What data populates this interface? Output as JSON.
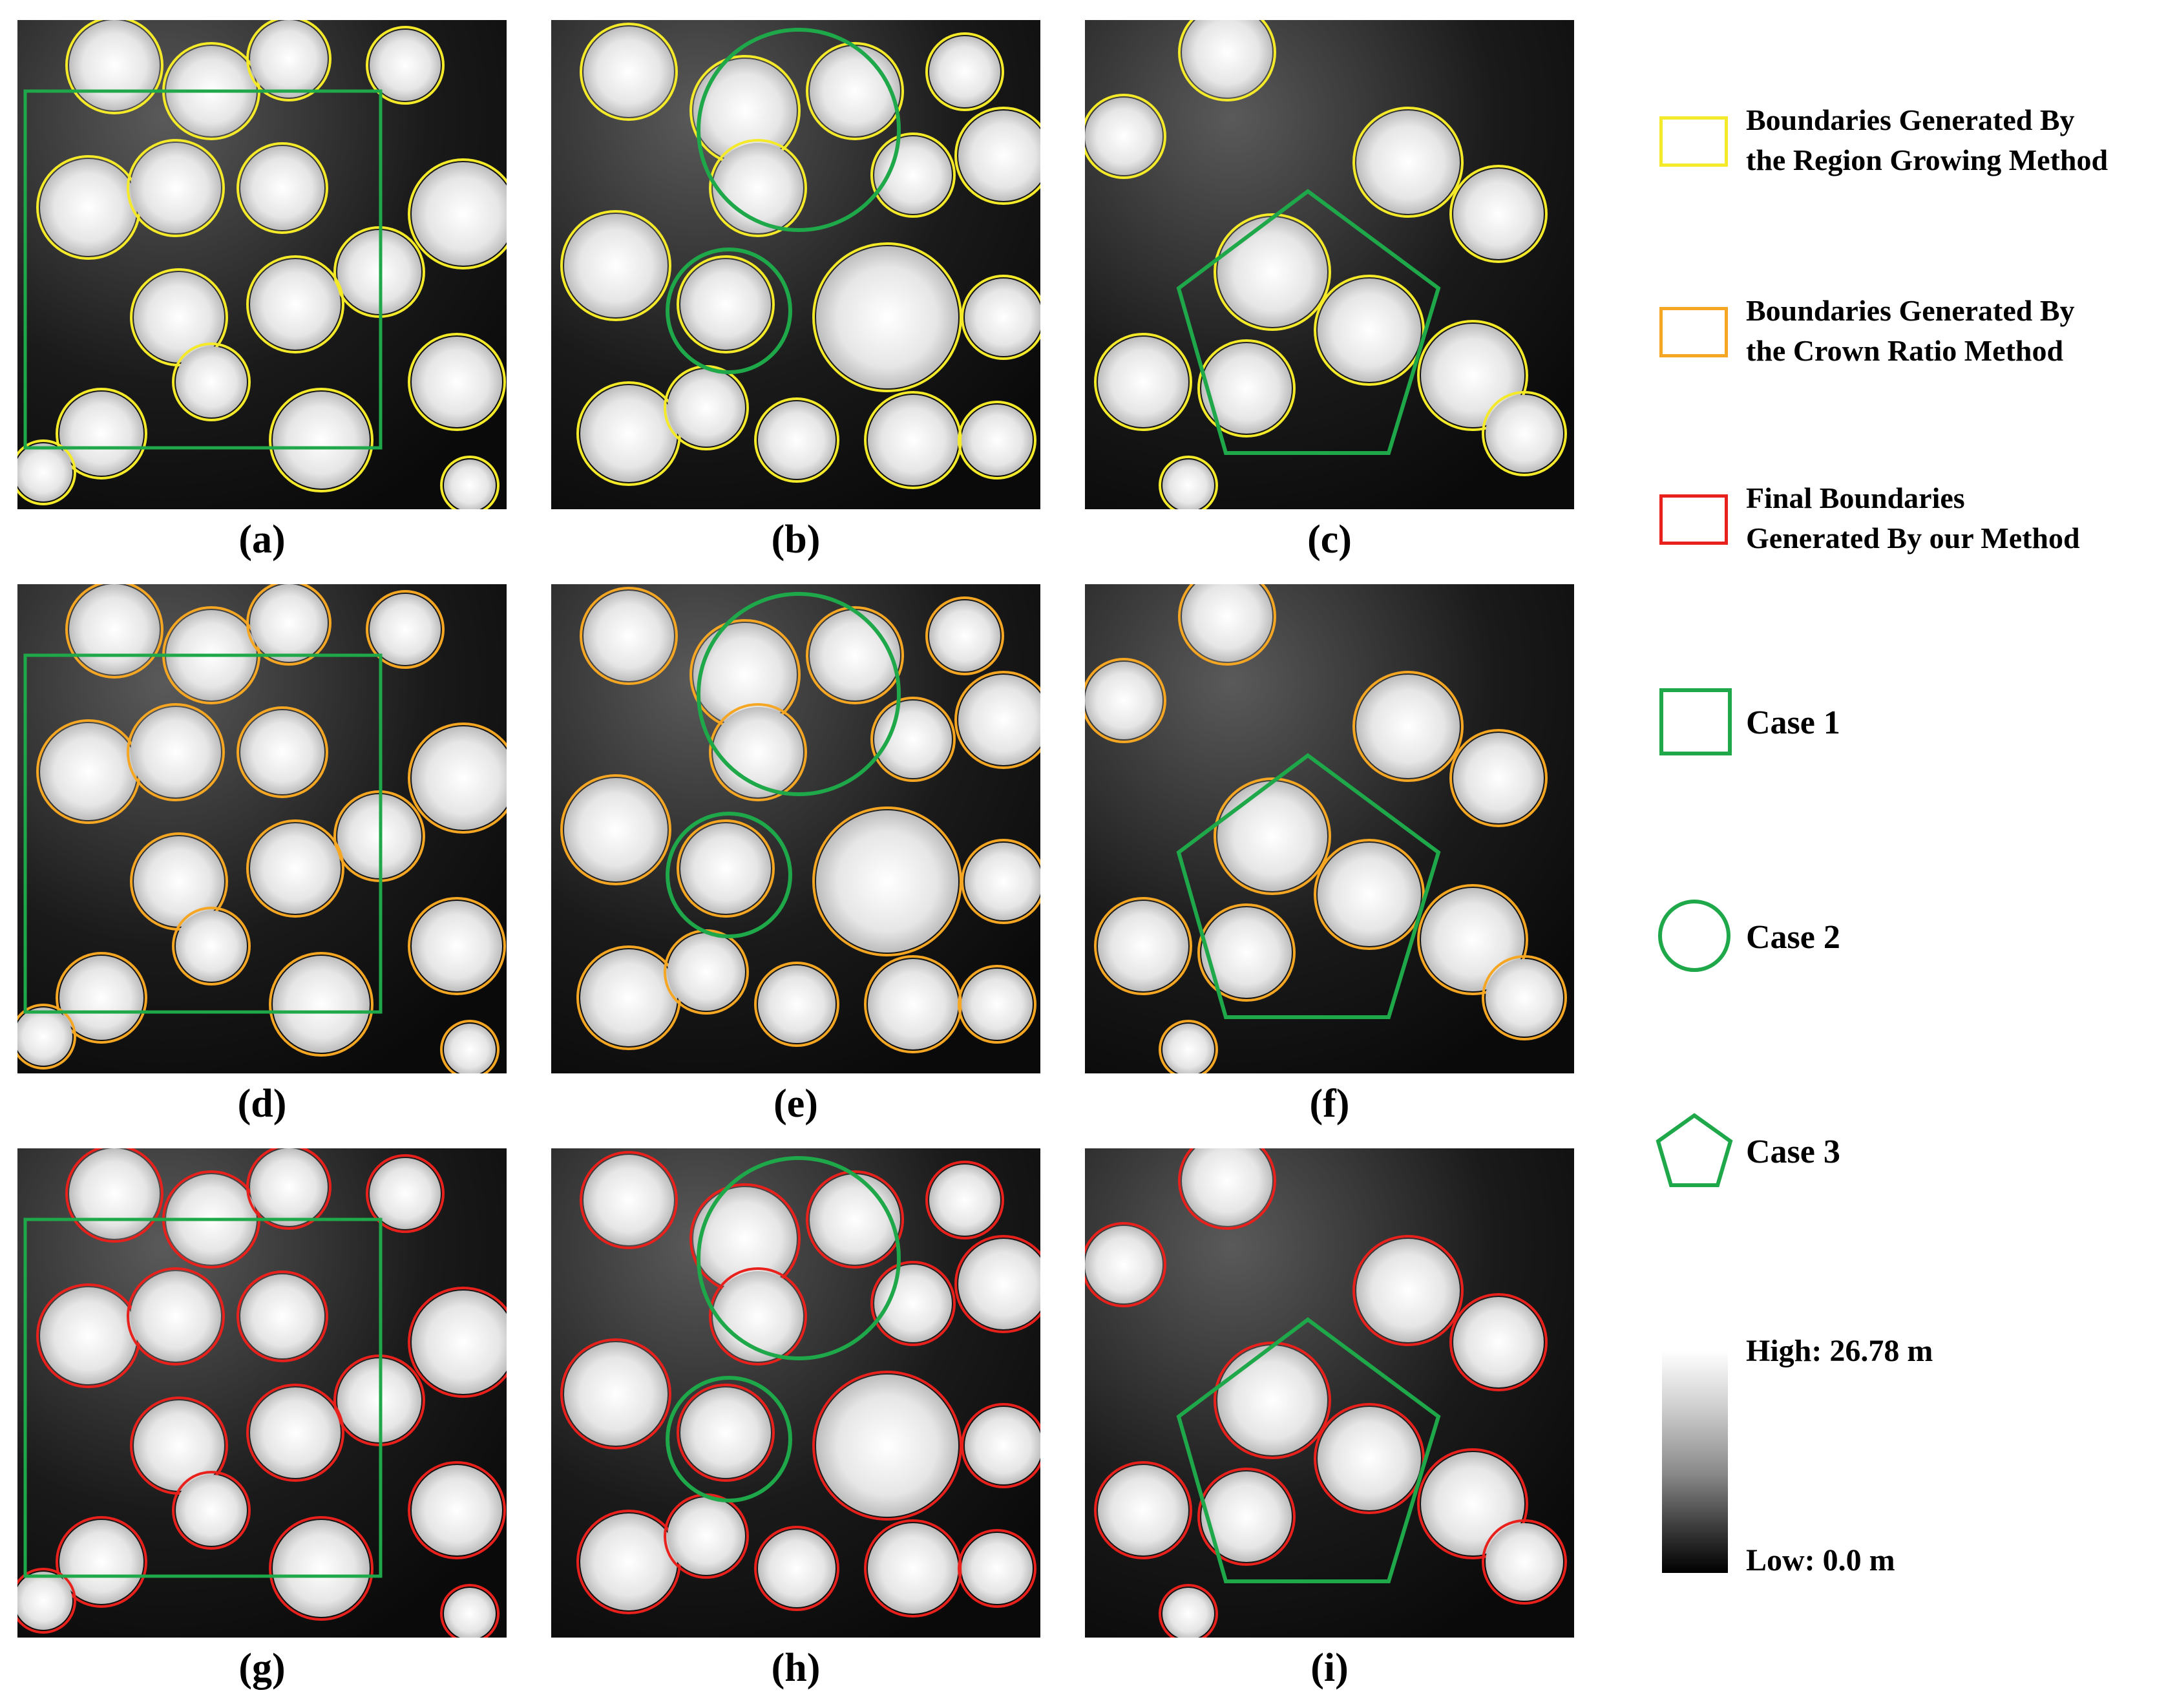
{
  "panels": [
    {
      "id": "a",
      "caption": "(a)",
      "boundary": "region-growing",
      "shape": "case-1"
    },
    {
      "id": "b",
      "caption": "(b)",
      "boundary": "region-growing",
      "shape": "case-2"
    },
    {
      "id": "c",
      "caption": "(c)",
      "boundary": "region-growing",
      "shape": "case-3"
    },
    {
      "id": "d",
      "caption": "(d)",
      "boundary": "crown-ratio",
      "shape": "case-1"
    },
    {
      "id": "e",
      "caption": "(e)",
      "boundary": "crown-ratio",
      "shape": "case-2"
    },
    {
      "id": "f",
      "caption": "(f)",
      "boundary": "crown-ratio",
      "shape": "case-3"
    },
    {
      "id": "g",
      "caption": "(g)",
      "boundary": "final",
      "shape": "case-1"
    },
    {
      "id": "h",
      "caption": "(h)",
      "boundary": "final",
      "shape": "case-2"
    },
    {
      "id": "i",
      "caption": "(i)",
      "boundary": "final",
      "shape": "case-3"
    }
  ],
  "legend": {
    "region_growing": {
      "line1": "Boundaries Generated By",
      "line2": "the Region Growing Method",
      "color": "#f4ea2a"
    },
    "crown_ratio": {
      "line1": "Boundaries Generated By",
      "line2": "the Crown Ratio Method",
      "color": "#f5a623"
    },
    "final": {
      "line1": "Final Boundaries",
      "line2": "Generated By our Method",
      "color": "#e8211c"
    },
    "case1": {
      "label": "Case 1",
      "icon": "square-icon",
      "color": "#1ea84a"
    },
    "case2": {
      "label": "Case 2",
      "icon": "circle-icon",
      "color": "#1ea84a"
    },
    "case3": {
      "label": "Case 3",
      "icon": "pentagon-icon",
      "color": "#1ea84a"
    }
  },
  "colorbar": {
    "high": "High: 26.78 m",
    "low": "Low: 0.0 m"
  }
}
